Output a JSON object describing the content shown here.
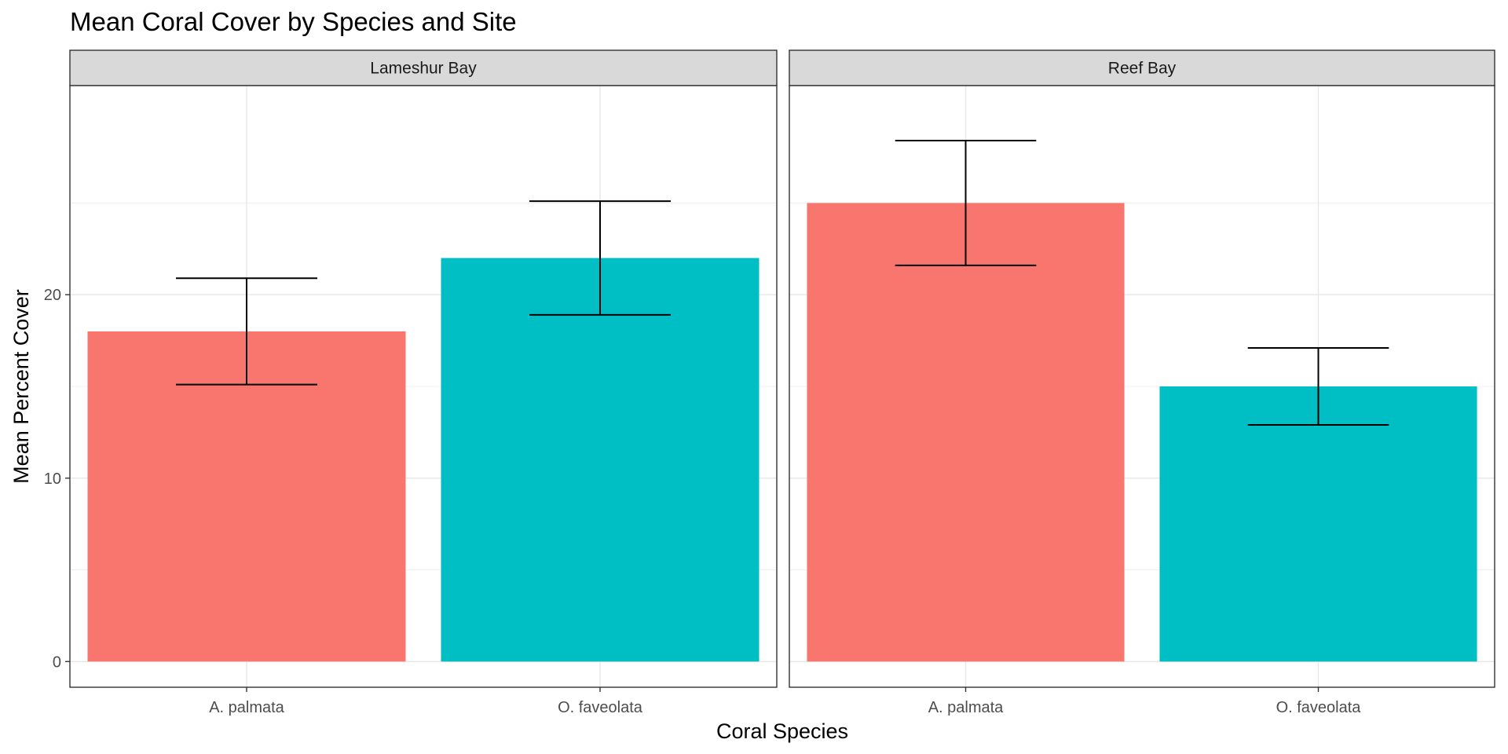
{
  "chart_data": {
    "type": "bar",
    "title": "Mean Coral Cover by Species and Site",
    "xlabel": "Coral Species",
    "ylabel": "Mean Percent Cover",
    "ylim": [
      -1.4,
      31.4
    ],
    "y_ticks": [
      0,
      10,
      20
    ],
    "grid": true,
    "legend": "none",
    "facet_strip": "top",
    "categories": [
      "A. palmata",
      "O. faveolata"
    ],
    "category_colors": [
      "#F8766D",
      "#00BFC4"
    ],
    "panels": [
      {
        "name": "Lameshur Bay",
        "values": [
          18,
          22
        ],
        "error_low": [
          15.1,
          18.9
        ],
        "error_high": [
          20.9,
          25.1
        ]
      },
      {
        "name": "Reef Bay",
        "values": [
          25,
          15
        ],
        "error_low": [
          21.6,
          12.9
        ],
        "error_high": [
          28.4,
          17.1
        ]
      }
    ]
  }
}
